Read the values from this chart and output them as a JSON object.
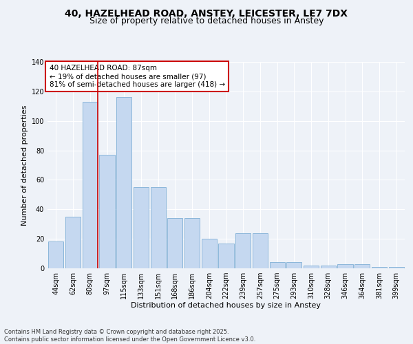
{
  "title_line1": "40, HAZELHEAD ROAD, ANSTEY, LEICESTER, LE7 7DX",
  "title_line2": "Size of property relative to detached houses in Anstey",
  "xlabel": "Distribution of detached houses by size in Anstey",
  "ylabel": "Number of detached properties",
  "categories": [
    "44sqm",
    "62sqm",
    "80sqm",
    "97sqm",
    "115sqm",
    "133sqm",
    "151sqm",
    "168sqm",
    "186sqm",
    "204sqm",
    "222sqm",
    "239sqm",
    "257sqm",
    "275sqm",
    "293sqm",
    "310sqm",
    "328sqm",
    "346sqm",
    "364sqm",
    "381sqm",
    "399sqm"
  ],
  "values": [
    18,
    35,
    113,
    77,
    116,
    55,
    55,
    34,
    34,
    20,
    17,
    24,
    24,
    4,
    4,
    2,
    2,
    3,
    3,
    1,
    1
  ],
  "bar_color": "#c5d8f0",
  "bar_edge_color": "#7fafd6",
  "vline_x_idx": 2,
  "vline_color": "#cc0000",
  "annotation_text": "40 HAZELHEAD ROAD: 87sqm\n← 19% of detached houses are smaller (97)\n81% of semi-detached houses are larger (418) →",
  "annotation_box_color": "#ffffff",
  "annotation_box_edge": "#cc0000",
  "ylim": [
    0,
    140
  ],
  "yticks": [
    0,
    20,
    40,
    60,
    80,
    100,
    120,
    140
  ],
  "background_color": "#eef2f8",
  "plot_bg_color": "#eef2f8",
  "footer_text": "Contains HM Land Registry data © Crown copyright and database right 2025.\nContains public sector information licensed under the Open Government Licence v3.0.",
  "title_fontsize": 10,
  "subtitle_fontsize": 9,
  "axis_label_fontsize": 8,
  "tick_fontsize": 7,
  "annotation_fontsize": 7.5,
  "footer_fontsize": 6
}
